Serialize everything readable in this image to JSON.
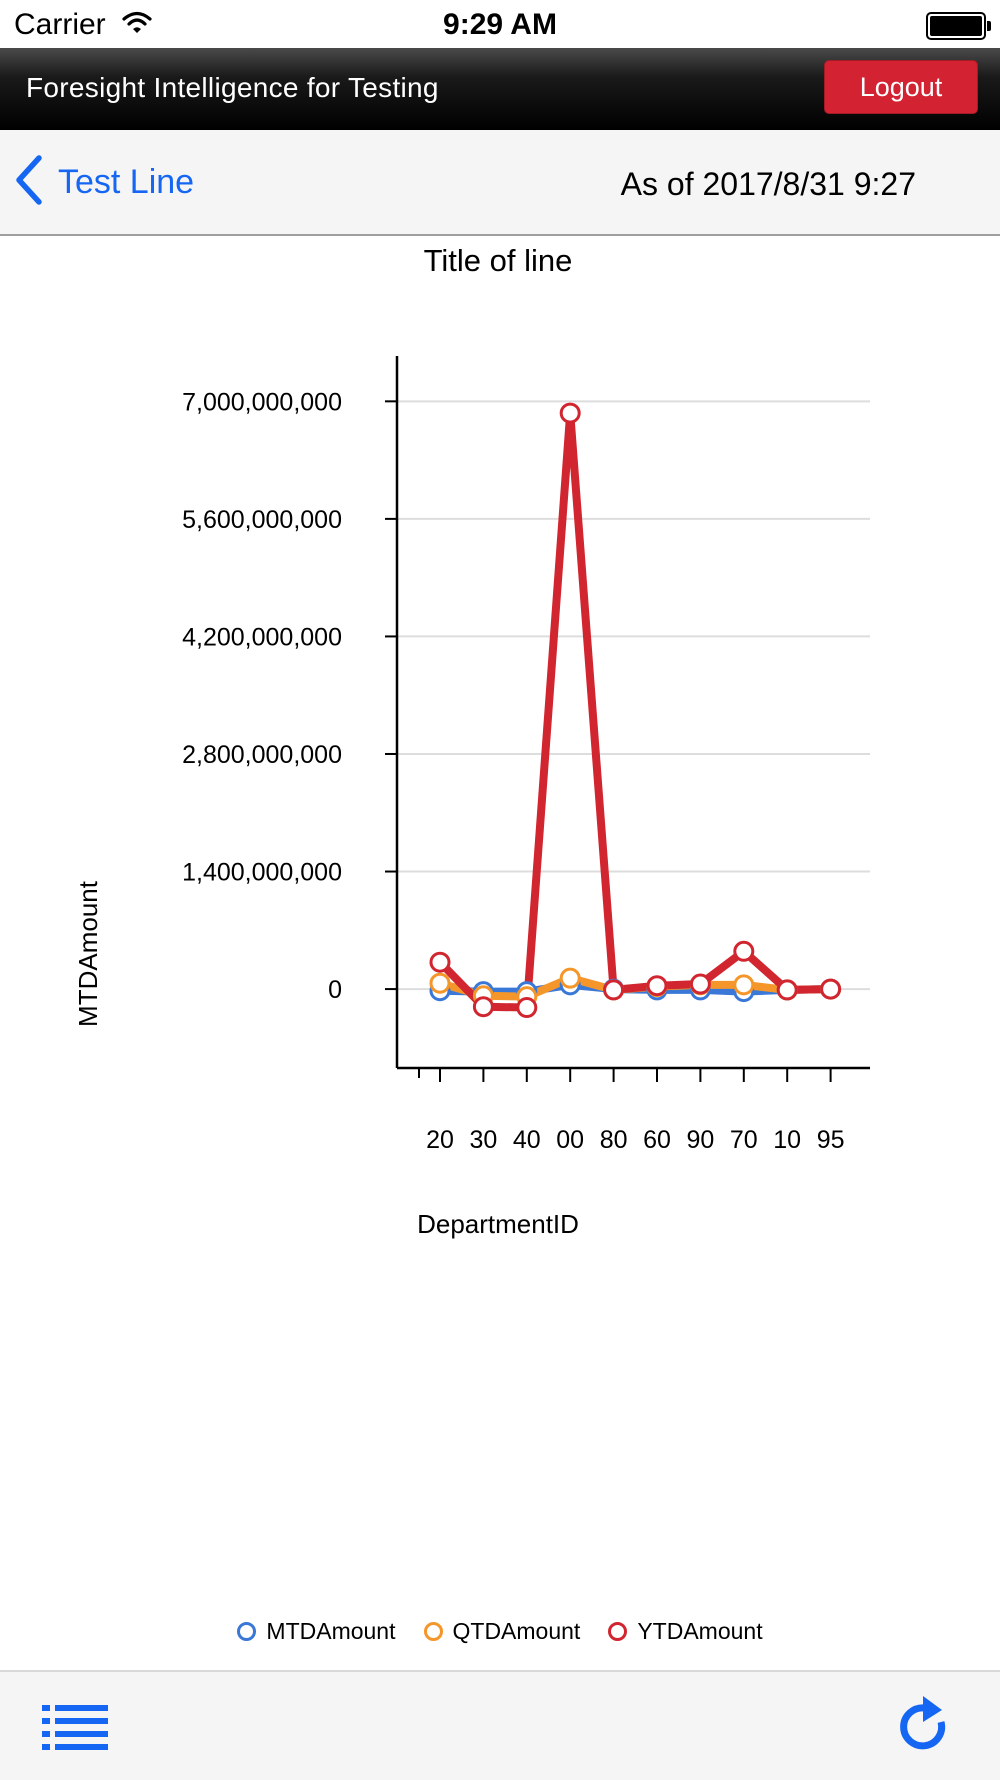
{
  "status_bar": {
    "carrier": "Carrier",
    "time": "9:29 AM"
  },
  "header": {
    "title": "Foresight Intelligence for Testing",
    "logout_label": "Logout"
  },
  "nav": {
    "back_label": "Test Line",
    "as_of": "As of 2017/8/31 9:27"
  },
  "toolbar": {
    "menu_icon": "list-menu-icon",
    "refresh_icon": "refresh-icon"
  },
  "colors": {
    "accent": "#1566f2",
    "logout": "#d32232",
    "mtd": "#3a78d8",
    "qtd": "#f5962a",
    "ytd": "#d1262f"
  },
  "chart_data": {
    "type": "line",
    "title": "Title of line",
    "xlabel": "DepartmentID",
    "ylabel": "MTDAmount",
    "categories": [
      "20",
      "30",
      "40",
      "00",
      "80",
      "60",
      "90",
      "70",
      "10",
      "95"
    ],
    "y_ticks": [
      0,
      1400000000,
      2800000000,
      4200000000,
      5600000000,
      7000000000
    ],
    "y_tick_labels": [
      "0",
      "1,400,000,000",
      "2,800,000,000",
      "4,200,000,000",
      "5,600,000,000",
      "7,000,000,000"
    ],
    "ylim": [
      -940000000,
      7540000000
    ],
    "grid": true,
    "legend_position": "bottom",
    "series": [
      {
        "name": "MTDAmount",
        "color": "#3a78d8",
        "values": [
          -20000000,
          -30000000,
          -30000000,
          50000000,
          0,
          -10000000,
          -10000000,
          -30000000,
          -10000000,
          0
        ]
      },
      {
        "name": "QTDAmount",
        "color": "#f5962a",
        "values": [
          70000000,
          -80000000,
          -90000000,
          130000000,
          -10000000,
          30000000,
          50000000,
          50000000,
          -10000000,
          0
        ]
      },
      {
        "name": "YTDAmount",
        "color": "#d1262f",
        "values": [
          320000000,
          -210000000,
          -220000000,
          6860000000,
          -10000000,
          40000000,
          60000000,
          450000000,
          -10000000,
          0
        ]
      }
    ]
  }
}
